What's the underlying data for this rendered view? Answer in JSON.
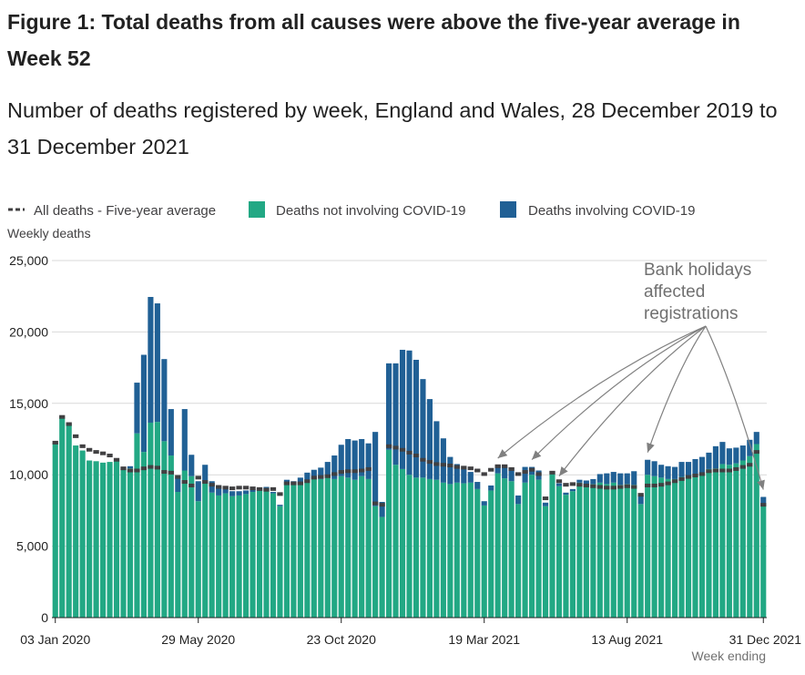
{
  "chart_data": {
    "type": "bar",
    "title": "Figure 1: Total deaths from all causes were above the five-year average in Week 52",
    "subtitle": "Number of deaths registered by week, England and Wales, 28 December 2019 to 31 December 2021",
    "ylabel": "Weekly deaths",
    "xlabel": "Week ending",
    "ylim": [
      0,
      25000
    ],
    "yticks": [
      0,
      5000,
      10000,
      15000,
      20000,
      25000
    ],
    "ytick_labels": [
      "0",
      "5,000",
      "10,000",
      "15,000",
      "20,000",
      "25,000"
    ],
    "xtick_labels": [
      {
        "index": 0,
        "label": "03 Jan 2020"
      },
      {
        "index": 21,
        "label": "29 May 2020"
      },
      {
        "index": 42,
        "label": "23 Oct 2020"
      },
      {
        "index": 63,
        "label": "19 Mar 2021"
      },
      {
        "index": 84,
        "label": "13 Aug 2021"
      },
      {
        "index": 104,
        "label": "31 Dec 2021"
      }
    ],
    "legend": [
      {
        "label": "All deaths - Five-year average",
        "color": "#414042",
        "kind": "dash"
      },
      {
        "label": "Deaths not involving COVID-19",
        "color": "#22a884",
        "kind": "box"
      },
      {
        "label": "Deaths involving COVID-19",
        "color": "#206095",
        "kind": "box"
      }
    ],
    "annotation": {
      "lines": [
        "Bank holidays",
        "affected",
        "registrations"
      ],
      "target_indices": [
        65,
        70,
        74,
        87,
        104
      ]
    },
    "series": [
      {
        "name": "Deaths not involving COVID-19",
        "color": "#22a884",
        "values": [
          12250,
          14050,
          13550,
          12050,
          11700,
          11000,
          10950,
          10850,
          10900,
          11000,
          10400,
          10450,
          12900,
          11600,
          13650,
          13700,
          12350,
          11350,
          8800,
          10300,
          9900,
          8150,
          9600,
          8750,
          8550,
          8700,
          8500,
          8550,
          8650,
          8800,
          8900,
          9000,
          8700,
          7800,
          9500,
          9300,
          9400,
          9650,
          9750,
          9700,
          9800,
          9700,
          9900,
          9800,
          9650,
          9900,
          9700,
          7800,
          7050,
          11750,
          10700,
          10400,
          10000,
          9800,
          9800,
          9700,
          9650,
          9450,
          9350,
          9450,
          9400,
          9450,
          9000,
          7850,
          8900,
          10100,
          9750,
          9550,
          7950,
          9450,
          10000,
          9650,
          7800,
          10050,
          9200,
          8600,
          8850,
          9450,
          9300,
          9350,
          9450,
          9350,
          9450,
          9300,
          9350,
          9300,
          7950,
          10000,
          9900,
          9800,
          9700,
          9700,
          9850,
          9950,
          10000,
          10100,
          10400,
          10450,
          10750,
          10700,
          10800,
          11000,
          11300,
          12150,
          7800
        ]
      },
      {
        "name": "Deaths involving COVID-19",
        "color": "#206095",
        "values": [
          0,
          0,
          0,
          0,
          0,
          0,
          0,
          0,
          0,
          0,
          0,
          150,
          3550,
          6800,
          8800,
          8300,
          5750,
          3250,
          1000,
          4300,
          1500,
          1400,
          1100,
          800,
          600,
          500,
          350,
          300,
          250,
          200,
          150,
          150,
          100,
          100,
          150,
          250,
          400,
          500,
          600,
          800,
          1100,
          1650,
          2200,
          2700,
          2750,
          2600,
          2500,
          5200,
          1050,
          6050,
          7100,
          8350,
          8700,
          8250,
          6900,
          5600,
          4100,
          3100,
          1900,
          1300,
          1000,
          750,
          500,
          300,
          350,
          550,
          800,
          950,
          600,
          1100,
          550,
          650,
          250,
          200,
          200,
          150,
          150,
          200,
          300,
          350,
          600,
          750,
          750,
          800,
          750,
          950,
          600,
          1050,
          1050,
          900,
          900,
          850,
          1050,
          950,
          1100,
          1150,
          1150,
          1550,
          1550,
          1150,
          1100,
          1050,
          1150,
          850,
          650
        ]
      },
      {
        "name": "All deaths - Five-year average",
        "color": "#414042",
        "values": [
          12250,
          14050,
          13550,
          12700,
          12000,
          11750,
          11600,
          11500,
          11350,
          11050,
          10450,
          10300,
          10300,
          10450,
          10550,
          10500,
          10200,
          10150,
          9850,
          9500,
          9250,
          9800,
          9500,
          9300,
          9150,
          9100,
          9050,
          9100,
          9100,
          9050,
          9000,
          8950,
          9000,
          8650,
          9400,
          9400,
          9400,
          9550,
          9800,
          9850,
          9900,
          10050,
          10200,
          10250,
          10250,
          10300,
          10400,
          8000,
          7900,
          12000,
          11900,
          11750,
          11550,
          11350,
          11050,
          10900,
          10750,
          10700,
          10650,
          10550,
          10500,
          10450,
          10300,
          10050,
          10350,
          10600,
          10600,
          10400,
          10050,
          10200,
          10350,
          10050,
          8350,
          10150,
          9550,
          9300,
          9350,
          9300,
          9250,
          9200,
          9150,
          9100,
          9100,
          9150,
          9200,
          9150,
          8600,
          9250,
          9250,
          9300,
          9400,
          9550,
          9700,
          9850,
          9950,
          10050,
          10250,
          10300,
          10300,
          10300,
          10400,
          10550,
          10700,
          11600,
          7900
        ]
      }
    ]
  }
}
